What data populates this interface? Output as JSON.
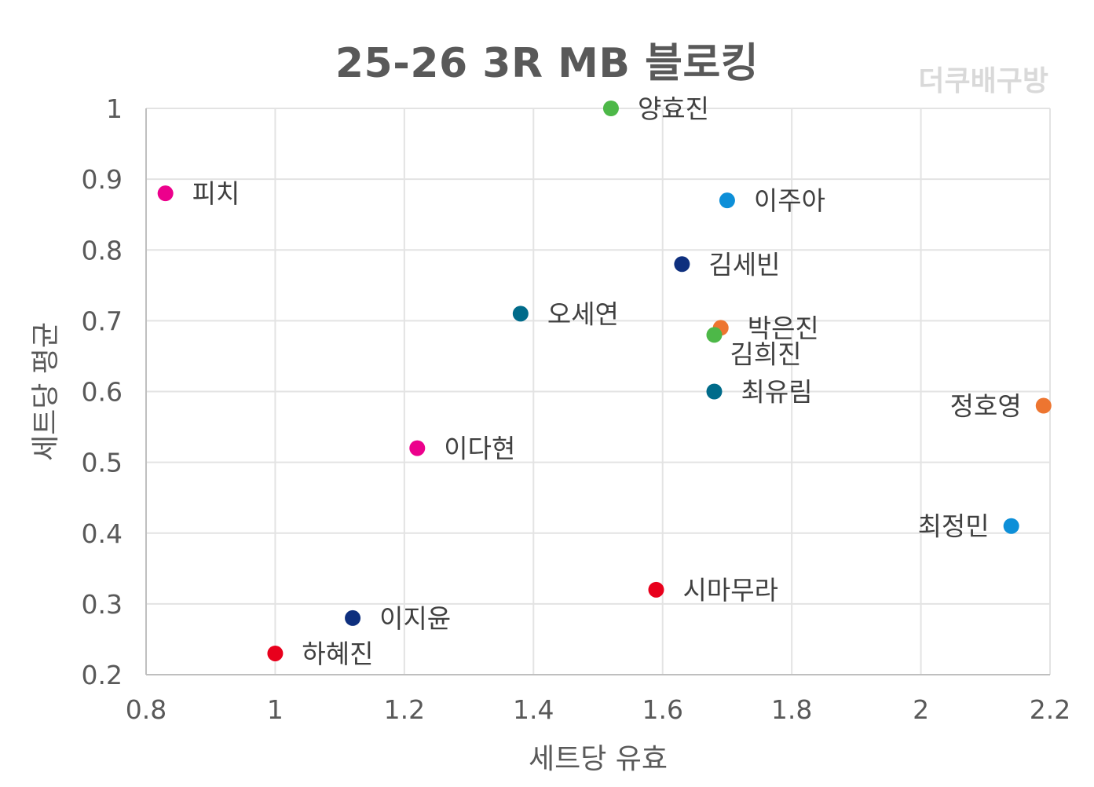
{
  "watermark": "더쿠배구방",
  "chart_data": {
    "type": "scatter",
    "title": "25-26  3R MB 블로킹",
    "xlabel": "세트당 유효",
    "ylabel": "세트당 평균",
    "xlim": [
      0.8,
      2.2
    ],
    "ylim": [
      0.2,
      1.0
    ],
    "xticks": [
      0.8,
      1,
      1.2,
      1.4,
      1.6,
      1.8,
      2,
      2.2
    ],
    "xtick_labels": [
      "0.8",
      "1",
      "1.2",
      "1.4",
      "1.6",
      "1.8",
      "2",
      "2.2"
    ],
    "yticks": [
      0.2,
      0.3,
      0.4,
      0.5,
      0.6,
      0.7,
      0.8,
      0.9,
      1.0
    ],
    "ytick_labels": [
      "0.2",
      "0.3",
      "0.4",
      "0.5",
      "0.6",
      "0.7",
      "0.8",
      "0.9",
      "1"
    ],
    "grid": true,
    "points": [
      {
        "label": "양효진",
        "x": 1.52,
        "y": 1.0,
        "color": "#4db848",
        "label_side": "right"
      },
      {
        "label": "피치",
        "x": 0.83,
        "y": 0.88,
        "color": "#ec008c",
        "label_side": "right"
      },
      {
        "label": "이주아",
        "x": 1.7,
        "y": 0.87,
        "color": "#0d8fd8",
        "label_side": "right"
      },
      {
        "label": "김세빈",
        "x": 1.63,
        "y": 0.78,
        "color": "#0e2f7e",
        "label_side": "right"
      },
      {
        "label": "오세연",
        "x": 1.38,
        "y": 0.71,
        "color": "#006b8a",
        "label_side": "right"
      },
      {
        "label": "박은진",
        "x": 1.69,
        "y": 0.69,
        "color": "#ed7530",
        "label_side": "right"
      },
      {
        "label": "김희진",
        "x": 1.68,
        "y": 0.68,
        "color": "#4db848",
        "label_side": "below-right"
      },
      {
        "label": "최유림",
        "x": 1.68,
        "y": 0.6,
        "color": "#006b8a",
        "label_side": "right"
      },
      {
        "label": "정호영",
        "x": 2.19,
        "y": 0.58,
        "color": "#ed7530",
        "label_side": "left"
      },
      {
        "label": "이다현",
        "x": 1.22,
        "y": 0.52,
        "color": "#ec008c",
        "label_side": "right"
      },
      {
        "label": "최정민",
        "x": 2.14,
        "y": 0.41,
        "color": "#0d8fd8",
        "label_side": "left"
      },
      {
        "label": "시마무라",
        "x": 1.59,
        "y": 0.32,
        "color": "#e8001c",
        "label_side": "right"
      },
      {
        "label": "이지윤",
        "x": 1.12,
        "y": 0.28,
        "color": "#0e2f7e",
        "label_side": "right"
      },
      {
        "label": "하혜진",
        "x": 1.0,
        "y": 0.23,
        "color": "#e8001c",
        "label_side": "right"
      }
    ]
  }
}
